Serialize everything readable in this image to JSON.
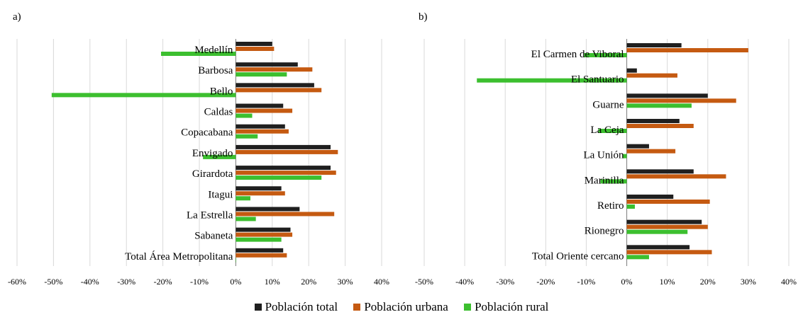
{
  "colors": {
    "total": "#1f1f1f",
    "urbana": "#c55a11",
    "rural": "#3cbf2f",
    "grid": "#d9d9d9",
    "axis": "#7f7f7f"
  },
  "legend": {
    "total": "Población total",
    "urbana": "Población urbana",
    "rural": "Población rural"
  },
  "chart_data": [
    {
      "type": "bar",
      "orientation": "horizontal",
      "panel_label": "a)",
      "xlim": [
        -60,
        40
      ],
      "xticks": [
        -60,
        -50,
        -40,
        -30,
        -20,
        -10,
        0,
        10,
        20,
        30,
        40
      ],
      "tick_suffix": "%",
      "grid": true,
      "legend_position": "bottom",
      "categories": [
        "Medellín",
        "Barbosa",
        "Bello",
        "Caldas",
        "Copacabana",
        "Envigado",
        "Girardota",
        "Itagui",
        "La Estrella",
        "Sabaneta",
        "Total Área Metropolitana"
      ],
      "series": [
        {
          "name": "Población total",
          "values": [
            10,
            17,
            21.5,
            13,
            13.5,
            26,
            26,
            12.5,
            17.5,
            15,
            13
          ]
        },
        {
          "name": "Población urbana",
          "values": [
            10.5,
            21,
            23.5,
            15.5,
            14.5,
            28,
            27.5,
            13.5,
            27,
            15.5,
            14
          ]
        },
        {
          "name": "Población rural",
          "values": [
            -20.5,
            14,
            -50.5,
            4.5,
            6,
            -9,
            23.5,
            4,
            5.5,
            12.5,
            0
          ]
        }
      ]
    },
    {
      "type": "bar",
      "orientation": "horizontal",
      "panel_label": "b)",
      "xlim": [
        -50,
        40
      ],
      "xticks": [
        -50,
        -40,
        -30,
        -20,
        -10,
        0,
        10,
        20,
        30,
        40
      ],
      "tick_suffix": "%",
      "grid": true,
      "legend_position": "bottom",
      "categories": [
        "El Carmen de Viboral",
        "El Santuario",
        "Guarne",
        "La Ceja",
        "La Unión",
        "Marinilla",
        "Retiro",
        "Rionegro",
        "Total Oriente cercano"
      ],
      "series": [
        {
          "name": "Población total",
          "values": [
            13.5,
            2.5,
            20,
            13,
            5.5,
            16.5,
            11.5,
            18.5,
            15.5
          ]
        },
        {
          "name": "Población urbana",
          "values": [
            30,
            12.5,
            27,
            16.5,
            12,
            24.5,
            20.5,
            20,
            21
          ]
        },
        {
          "name": "Población rural",
          "values": [
            -10.5,
            -37,
            16,
            -7,
            -1,
            -6.5,
            2,
            15,
            5.5
          ]
        }
      ]
    }
  ]
}
